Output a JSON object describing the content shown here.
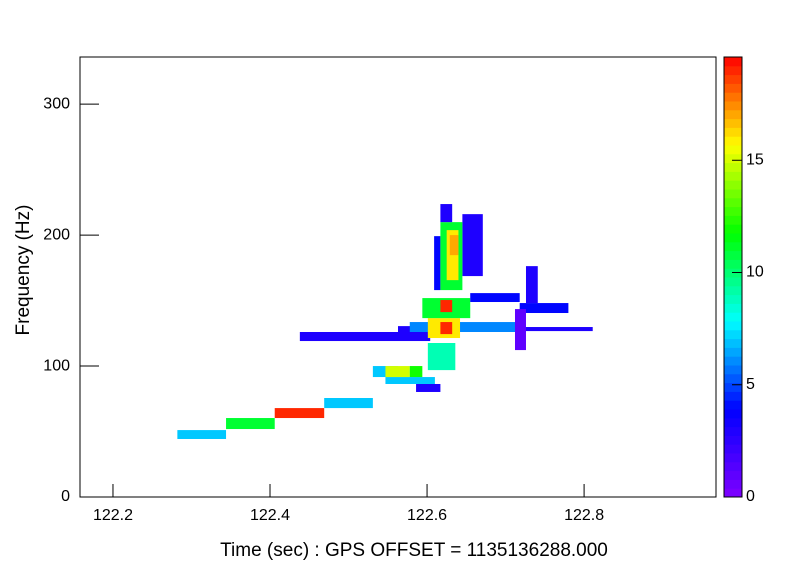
{
  "chart_data": {
    "type": "heatmap",
    "xlabel": "Time (sec) : GPS OFFSET = 1135136288.000",
    "ylabel": "Frequency (Hz)",
    "xlim": [
      122.158,
      122.968
    ],
    "xticks": [
      122.2,
      122.4,
      122.6,
      122.8
    ],
    "ylim": [
      0,
      336
    ],
    "yticks": [
      0,
      100,
      200,
      300
    ],
    "zlim": [
      0,
      19.6
    ],
    "zticks": [
      0,
      5,
      10,
      15
    ],
    "colormap": [
      "#7f00ff",
      "#0000ff",
      "#00ffff",
      "#00ff00",
      "#ffff00",
      "#ff0000"
    ],
    "tiles": [
      {
        "x": [
          122.438,
          122.604
        ],
        "y": [
          119.1,
          126.0
        ],
        "value": 3
      },
      {
        "x": [
          122.636,
          122.811
        ],
        "y": [
          126.7,
          129.8
        ],
        "value": 3
      },
      {
        "x": [
          122.282,
          122.344
        ],
        "y": [
          44.3,
          51.1
        ],
        "value": 7
      },
      {
        "x": [
          122.344,
          122.406
        ],
        "y": [
          51.9,
          60.3
        ],
        "value": 11
      },
      {
        "x": [
          122.406,
          122.469
        ],
        "y": [
          60.3,
          67.9
        ],
        "value": 19
      },
      {
        "x": [
          122.469,
          122.531
        ],
        "y": [
          67.9,
          75.6
        ],
        "value": 7
      },
      {
        "x": [
          122.586,
          122.617
        ],
        "y": [
          80.2,
          86.3
        ],
        "value": 3
      },
      {
        "x": [
          122.547,
          122.61
        ],
        "y": [
          86.3,
          91.6
        ],
        "value": 7
      },
      {
        "x": [
          122.531,
          122.563
        ],
        "y": [
          91.6,
          100.0
        ],
        "value": 7
      },
      {
        "x": [
          122.547,
          122.578
        ],
        "y": [
          91.6,
          100.0
        ],
        "value": 15
      },
      {
        "x": [
          122.578,
          122.594
        ],
        "y": [
          91.6,
          100.0
        ],
        "value": 12
      },
      {
        "x": [
          122.601,
          122.636
        ],
        "y": [
          96.9,
          117.6
        ],
        "value": 9
      },
      {
        "x": [
          122.563,
          122.586
        ],
        "y": [
          119.8,
          130.5
        ],
        "value": 3
      },
      {
        "x": [
          122.578,
          122.718
        ],
        "y": [
          126.0,
          133.6
        ],
        "value": 6
      },
      {
        "x": [
          122.601,
          122.642
        ],
        "y": [
          121.4,
          136.6
        ],
        "value": 16
      },
      {
        "x": [
          122.617,
          122.632
        ],
        "y": [
          124.4,
          133.6
        ],
        "value": 19
      },
      {
        "x": [
          122.594,
          122.655
        ],
        "y": [
          136.6,
          151.9
        ],
        "value": 11
      },
      {
        "x": [
          122.617,
          122.632
        ],
        "y": [
          141.2,
          150.4
        ],
        "value": 19
      },
      {
        "x": [
          122.655,
          122.718
        ],
        "y": [
          148.9,
          155.7
        ],
        "value": 4
      },
      {
        "x": [
          122.718,
          122.78
        ],
        "y": [
          140.5,
          148.1
        ],
        "value": 4
      },
      {
        "x": [
          122.726,
          122.741
        ],
        "y": [
          148.1,
          176.3
        ],
        "value": 3
      },
      {
        "x": [
          122.712,
          122.726
        ],
        "y": [
          112.2,
          143.5
        ],
        "value": 1
      },
      {
        "x": [
          122.645,
          122.671
        ],
        "y": [
          168.7,
          216.0
        ],
        "value": 3
      },
      {
        "x": [
          122.609,
          122.617
        ],
        "y": [
          158.0,
          199.2
        ],
        "value": 4
      },
      {
        "x": [
          122.617,
          122.645
        ],
        "y": [
          158.0,
          209.9
        ],
        "value": 11
      },
      {
        "x": [
          122.617,
          122.632
        ],
        "y": [
          209.9,
          223.7
        ],
        "value": 3
      },
      {
        "x": [
          122.625,
          122.64
        ],
        "y": [
          165.6,
          203.8
        ],
        "value": 16
      },
      {
        "x": [
          122.629,
          122.64
        ],
        "y": [
          184.7,
          200.0
        ],
        "value": 17
      }
    ]
  }
}
